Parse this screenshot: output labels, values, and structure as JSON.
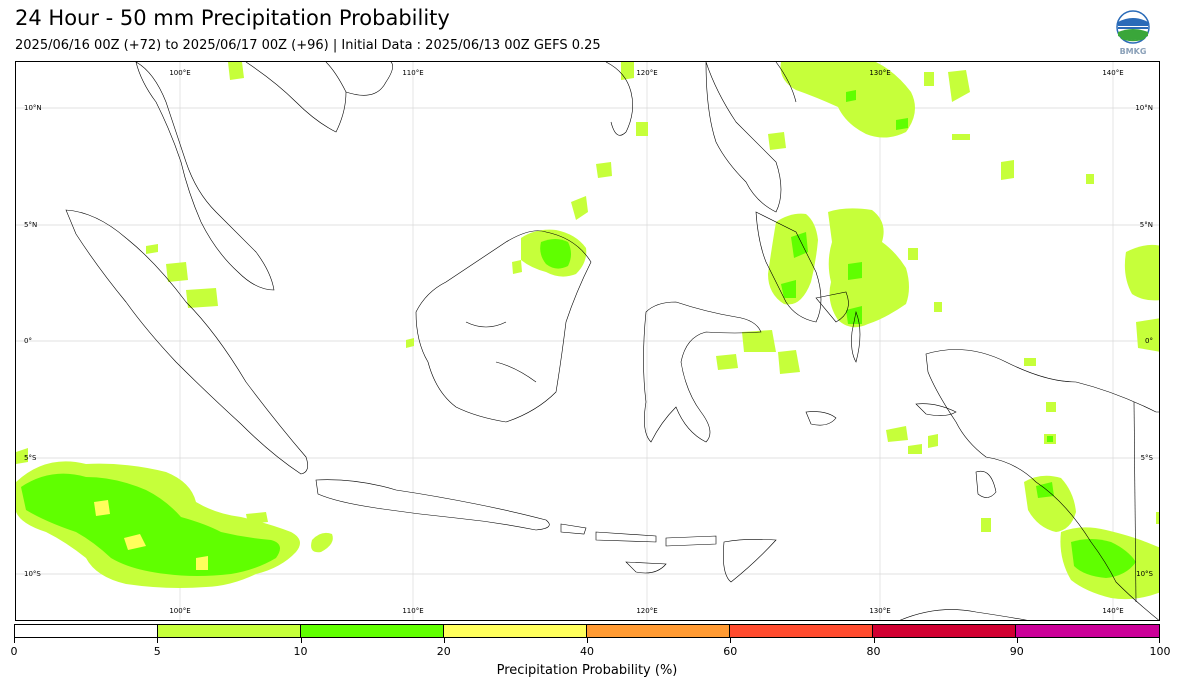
{
  "header": {
    "title": "24 Hour - 50 mm Precipitation Probability",
    "subtitle": "2025/06/16 00Z (+72) to 2025/06/17 00Z (+96) | Initial Data : 2025/06/13 00Z GEFS 0.25"
  },
  "logo": {
    "icon": "bmkg-logo-icon",
    "text": "BMKG"
  },
  "map": {
    "lon_labels": [
      "100°E",
      "110°E",
      "120°E",
      "130°E",
      "140°E"
    ],
    "lat_labels": [
      "10°N",
      "5°N",
      "0°",
      "5°S",
      "10°S"
    ],
    "colors": {
      "land_outline": "#000000",
      "gridline": "#d9d9d9",
      "p5": "#c6ff3a",
      "p10": "#60ff00",
      "p20": "#ffff5c"
    }
  },
  "colorbar": {
    "title": "Precipitation Probability (%)",
    "tick_labels": [
      "0",
      "5",
      "10",
      "20",
      "40",
      "60",
      "80",
      "90",
      "100"
    ],
    "bins": [
      {
        "from": 0,
        "to": 5,
        "color": "#ffffff"
      },
      {
        "from": 5,
        "to": 10,
        "color": "#c6ff3a"
      },
      {
        "from": 10,
        "to": 20,
        "color": "#60ff00"
      },
      {
        "from": 20,
        "to": 40,
        "color": "#ffff5c"
      },
      {
        "from": 40,
        "to": 60,
        "color": "#ff9a32"
      },
      {
        "from": 60,
        "to": 80,
        "color": "#ff4b2e"
      },
      {
        "from": 80,
        "to": 90,
        "color": "#d10032"
      },
      {
        "from": 90,
        "to": 100,
        "color": "#cc0099"
      }
    ]
  }
}
